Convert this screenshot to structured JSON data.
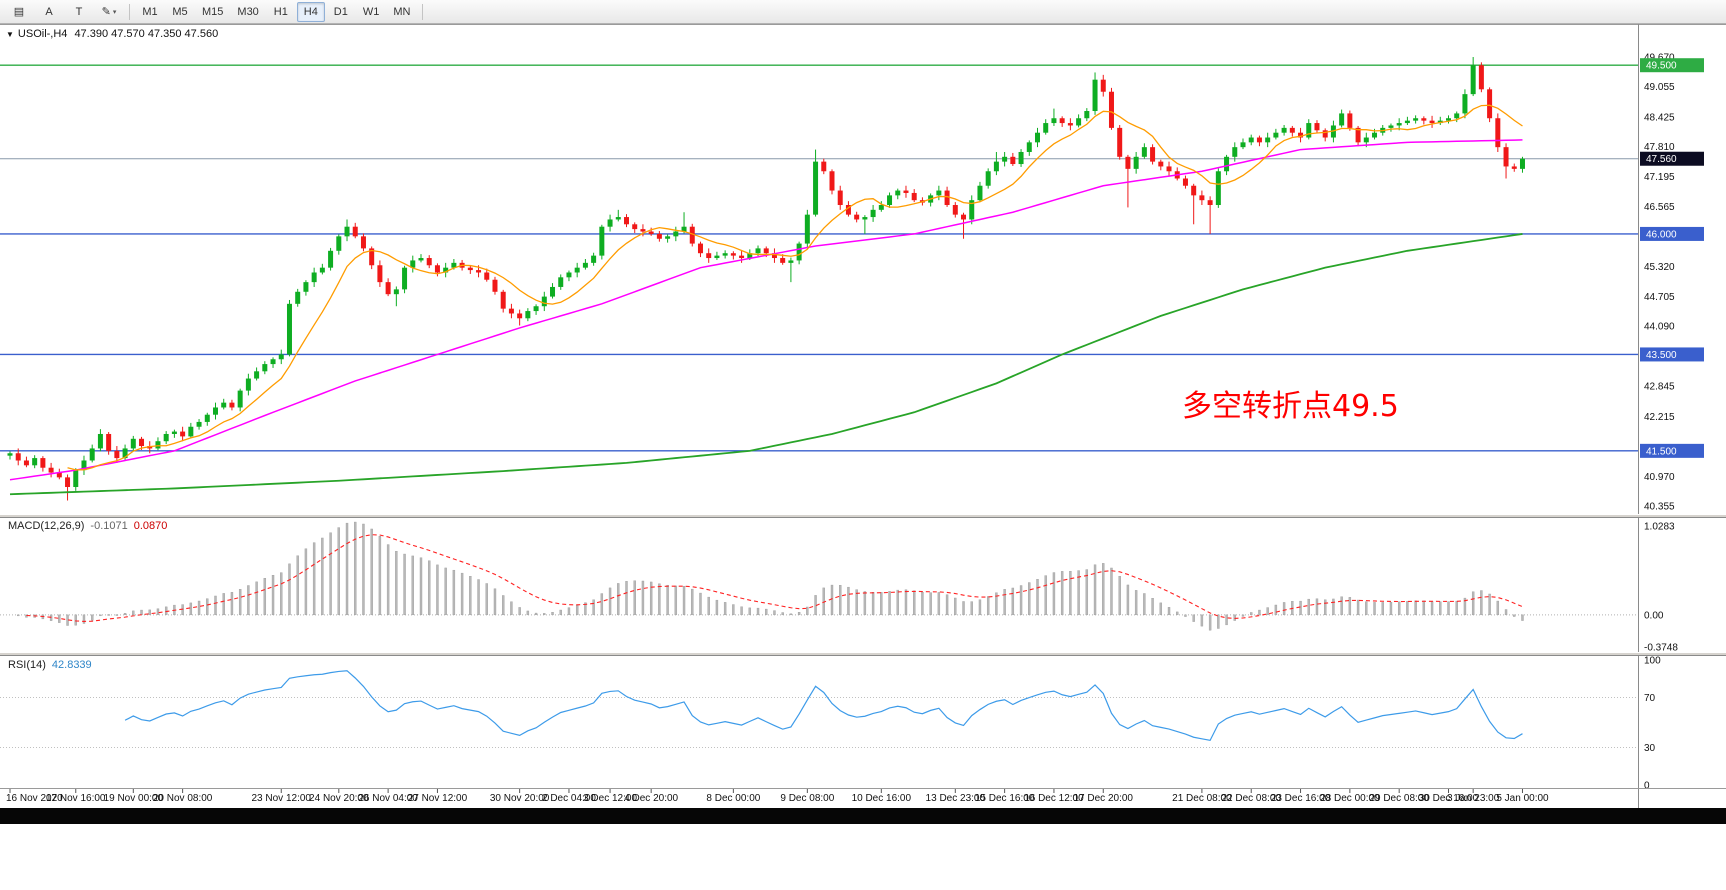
{
  "toolbar": {
    "tools": [
      {
        "name": "chart-list-icon",
        "glyph": "▤"
      },
      {
        "name": "annotate-a-button",
        "label": "A"
      },
      {
        "name": "text-tool-button",
        "label": "T"
      },
      {
        "name": "draw-shapes-button",
        "glyph": "✎",
        "caret": "▾"
      }
    ],
    "timeframes": [
      "M1",
      "M5",
      "M15",
      "M30",
      "H1",
      "H4",
      "D1",
      "W1",
      "MN"
    ],
    "active_timeframe": "H4"
  },
  "chart": {
    "collapse_icon": "▼",
    "symbol_timeframe": "USOil-,H4",
    "ohlc_text": "47.390 47.570 47.350 47.560"
  },
  "macd_panel": {
    "title": "MACD(12,26,9)",
    "value_main": "-0.1071",
    "value_signal": "0.0870",
    "axis_labels": [
      "1.0283",
      "0.00",
      "-0.3748"
    ]
  },
  "rsi_panel": {
    "title": "RSI(14)",
    "value": "42.8339",
    "axis_labels": [
      "100",
      "70",
      "30",
      "0"
    ]
  },
  "annotation": {
    "text": "多空转折点49.5",
    "color": "#ff0000"
  },
  "chart_data": {
    "type": "candlestick",
    "symbol": "USOil-",
    "timeframe": "H4",
    "ohlc": {
      "open": 47.39,
      "high": 47.57,
      "low": 47.35,
      "close": 47.56
    },
    "current_price": 47.56,
    "first_open": 41.4,
    "closes": [
      41.45,
      41.3,
      41.2,
      41.35,
      41.15,
      41.05,
      40.95,
      40.75,
      41.1,
      41.3,
      41.55,
      41.85,
      41.5,
      41.35,
      41.55,
      41.75,
      41.6,
      41.55,
      41.7,
      41.85,
      41.9,
      41.8,
      42.0,
      42.1,
      42.25,
      42.4,
      42.5,
      42.4,
      42.75,
      43.0,
      43.15,
      43.3,
      43.4,
      43.5,
      44.55,
      44.8,
      45.0,
      45.2,
      45.3,
      45.65,
      45.95,
      46.15,
      45.95,
      45.7,
      45.35,
      45.0,
      44.75,
      44.85,
      45.3,
      45.45,
      45.5,
      45.35,
      45.2,
      45.3,
      45.4,
      45.3,
      45.25,
      45.2,
      45.05,
      44.8,
      44.45,
      44.35,
      44.25,
      44.4,
      44.5,
      44.7,
      44.9,
      45.1,
      45.2,
      45.3,
      45.4,
      45.55,
      46.15,
      46.3,
      46.35,
      46.2,
      46.1,
      46.05,
      46.0,
      45.9,
      45.95,
      46.05,
      46.15,
      45.8,
      45.6,
      45.5,
      45.55,
      45.6,
      45.55,
      45.5,
      45.6,
      45.7,
      45.6,
      45.5,
      45.4,
      45.45,
      45.8,
      46.4,
      47.5,
      47.3,
      46.9,
      46.6,
      46.4,
      46.3,
      46.35,
      46.5,
      46.6,
      46.8,
      46.9,
      46.85,
      46.7,
      46.65,
      46.8,
      46.9,
      46.6,
      46.4,
      46.3,
      46.7,
      47.0,
      47.3,
      47.5,
      47.6,
      47.45,
      47.7,
      47.9,
      48.1,
      48.3,
      48.4,
      48.3,
      48.25,
      48.4,
      48.55,
      49.2,
      48.95,
      48.2,
      47.6,
      47.35,
      47.6,
      47.8,
      47.5,
      47.4,
      47.3,
      47.15,
      47.0,
      46.8,
      46.7,
      46.6,
      47.3,
      47.6,
      47.8,
      47.9,
      48.0,
      47.9,
      48.0,
      48.1,
      48.2,
      48.1,
      48.0,
      48.3,
      48.15,
      48.0,
      48.25,
      48.5,
      48.2,
      47.9,
      48.0,
      48.1,
      48.2,
      48.25,
      48.3,
      48.35,
      48.4,
      48.35,
      48.3,
      48.35,
      48.4,
      48.5,
      48.9,
      49.5,
      49.0,
      48.4,
      47.8,
      47.4,
      47.35,
      47.56
    ],
    "wick_overrides": {
      "7": {
        "low": 40.47
      },
      "11": {
        "high": 41.95
      },
      "41": {
        "high": 46.3
      },
      "47": {
        "low": 44.5
      },
      "62": {
        "low": 44.1
      },
      "74": {
        "high": 46.5
      },
      "82": {
        "high": 46.45
      },
      "95": {
        "low": 45.0
      },
      "98": {
        "high": 47.75
      },
      "104": {
        "low": 46.0
      },
      "116": {
        "low": 45.9
      },
      "120": {
        "high": 47.7
      },
      "127": {
        "high": 48.6
      },
      "132": {
        "high": 49.35
      },
      "136": {
        "low": 46.55
      },
      "144": {
        "low": 46.2
      },
      "146": {
        "low": 46.0
      },
      "178": {
        "high": 49.67
      },
      "182": {
        "low": 47.15
      }
    },
    "candle_colors": {
      "up": "#0ead22",
      "down": "#f01818"
    },
    "price_axis": {
      "min": 40.19,
      "max": 50.355,
      "labels": [
        {
          "t": "49.670",
          "type": "plain"
        },
        {
          "t": "49.500",
          "type": "level-green"
        },
        {
          "t": "49.055",
          "type": "plain"
        },
        {
          "t": "48.425",
          "type": "plain"
        },
        {
          "t": "47.810",
          "type": "plain"
        },
        {
          "t": "47.560",
          "type": "current"
        },
        {
          "t": "47.195",
          "type": "plain"
        },
        {
          "t": "46.565",
          "type": "plain"
        },
        {
          "t": "46.000",
          "type": "level-blue"
        },
        {
          "t": "45.320",
          "type": "plain"
        },
        {
          "t": "44.705",
          "type": "plain"
        },
        {
          "t": "44.090",
          "type": "plain"
        },
        {
          "t": "43.500",
          "type": "level-blue"
        },
        {
          "t": "42.845",
          "type": "plain"
        },
        {
          "t": "42.215",
          "type": "plain"
        },
        {
          "t": "41.500",
          "type": "level-blue"
        },
        {
          "t": "40.970",
          "type": "plain"
        },
        {
          "t": "40.355",
          "type": "plain"
        }
      ]
    },
    "hlines": [
      {
        "price": 49.5,
        "color": "#2eac44"
      },
      {
        "price": 46.0,
        "color": "#3a5fcd"
      },
      {
        "price": 43.5,
        "color": "#3a5fcd"
      },
      {
        "price": 41.5,
        "color": "#3a5fcd"
      }
    ],
    "moving_averages": {
      "fast_period": 8,
      "fast_color": "#ff9c00",
      "mid_color": "#ff00ff",
      "mid_anchors": [
        [
          0,
          40.9
        ],
        [
          8,
          41.1
        ],
        [
          20,
          41.5
        ],
        [
          32,
          42.3
        ],
        [
          42,
          42.95
        ],
        [
          52,
          43.5
        ],
        [
          62,
          44.05
        ],
        [
          72,
          44.55
        ],
        [
          84,
          45.3
        ],
        [
          98,
          45.75
        ],
        [
          110,
          46.0
        ],
        [
          122,
          46.45
        ],
        [
          133,
          47.0
        ],
        [
          145,
          47.3
        ],
        [
          157,
          47.75
        ],
        [
          170,
          47.9
        ],
        [
          184,
          47.95
        ]
      ],
      "slow_color": "#28a428",
      "slow_anchors": [
        [
          0,
          40.6
        ],
        [
          20,
          40.72
        ],
        [
          40,
          40.88
        ],
        [
          60,
          41.08
        ],
        [
          75,
          41.25
        ],
        [
          90,
          41.5
        ],
        [
          100,
          41.85
        ],
        [
          110,
          42.3
        ],
        [
          120,
          42.9
        ],
        [
          128,
          43.5
        ],
        [
          140,
          44.3
        ],
        [
          150,
          44.85
        ],
        [
          160,
          45.3
        ],
        [
          170,
          45.65
        ],
        [
          178,
          45.85
        ],
        [
          184,
          46.0
        ]
      ]
    },
    "macd": {
      "fast": 12,
      "slow": 26,
      "signal": 9,
      "hist_color": "#b8b8b8",
      "signal_color": "#ff2222",
      "scale_max": 1.12,
      "scale_min": -0.43
    },
    "rsi": {
      "period": 14,
      "color": "#3d9be9",
      "levels": [
        70,
        30
      ]
    },
    "time_labels": [
      {
        "t": "16 Nov 2020",
        "i": 0
      },
      {
        "t": "17 Nov 16:00",
        "i": 8
      },
      {
        "t": "19 Nov 00:00",
        "i": 15
      },
      {
        "t": "20 Nov 08:00",
        "i": 21
      },
      {
        "t": "23 Nov 12:00",
        "i": 33
      },
      {
        "t": "24 Nov 20:00",
        "i": 40
      },
      {
        "t": "26 Nov 04:00",
        "i": 46
      },
      {
        "t": "27 Nov 12:00",
        "i": 52
      },
      {
        "t": "30 Nov 20:00",
        "i": 62
      },
      {
        "t": "2 Dec 04:00",
        "i": 68
      },
      {
        "t": "3 Dec 12:00",
        "i": 73
      },
      {
        "t": "4 Dec 20:00",
        "i": 78
      },
      {
        "t": "8 Dec 00:00",
        "i": 88
      },
      {
        "t": "9 Dec 08:00",
        "i": 97
      },
      {
        "t": "10 Dec 16:00",
        "i": 106
      },
      {
        "t": "13 Dec 23:00",
        "i": 115
      },
      {
        "t": "15 Dec 16:00",
        "i": 121
      },
      {
        "t": "16 Dec 12:00",
        "i": 127
      },
      {
        "t": "17 Dec 20:00",
        "i": 133
      },
      {
        "t": "21 Dec 08:00",
        "i": 145
      },
      {
        "t": "22 Dec 08:00",
        "i": 151
      },
      {
        "t": "23 Dec 16:00",
        "i": 157
      },
      {
        "t": "28 Dec 00:00",
        "i": 163
      },
      {
        "t": "29 Dec 08:00",
        "i": 169
      },
      {
        "t": "30 Dec 16:00",
        "i": 175
      },
      {
        "t": "3 Jan 23:00",
        "i": 178
      },
      {
        "t": "5 Jan 00:00",
        "i": 184
      }
    ]
  }
}
